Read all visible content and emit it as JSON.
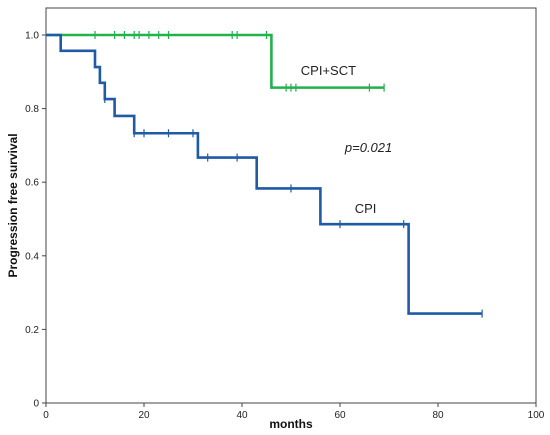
{
  "chart_data": {
    "type": "line",
    "subtype": "kaplan-meier-step",
    "xlabel": "months",
    "ylabel": "Progression free survival",
    "xlim": [
      0,
      100
    ],
    "ylim": [
      0,
      1.0
    ],
    "xticks": [
      "0",
      "20",
      "40",
      "60",
      "80",
      "100"
    ],
    "yticks": [
      "0",
      "0.2",
      "0.4",
      "0.6",
      "0.8",
      "1.0"
    ],
    "annotation": "p=0.021",
    "grid": false,
    "series": [
      {
        "name": "CPI+SCT",
        "color": "#22b14c",
        "steps": [
          [
            0,
            1.0
          ],
          [
            46,
            0.857
          ],
          [
            69,
            0.857
          ]
        ],
        "censor_x": [
          10,
          14,
          16,
          18,
          19,
          21,
          23,
          25,
          38,
          39,
          45,
          49,
          50,
          51,
          66,
          69
        ],
        "label_pos_data": [
          52,
          0.905
        ]
      },
      {
        "name": "CPI",
        "color": "#1f5aa6",
        "steps": [
          [
            0,
            1.0
          ],
          [
            3,
            0.957
          ],
          [
            10,
            0.913
          ],
          [
            11,
            0.87
          ],
          [
            12,
            0.826
          ],
          [
            14,
            0.78
          ],
          [
            18,
            0.733
          ],
          [
            31,
            0.667
          ],
          [
            43,
            0.583
          ],
          [
            56,
            0.486
          ],
          [
            74,
            0.243
          ],
          [
            89,
            0.243
          ]
        ],
        "censor_x": [
          12,
          18,
          20,
          25,
          30,
          33,
          39,
          50,
          60,
          73,
          89
        ],
        "label_pos_data": [
          63,
          0.53
        ]
      }
    ]
  }
}
